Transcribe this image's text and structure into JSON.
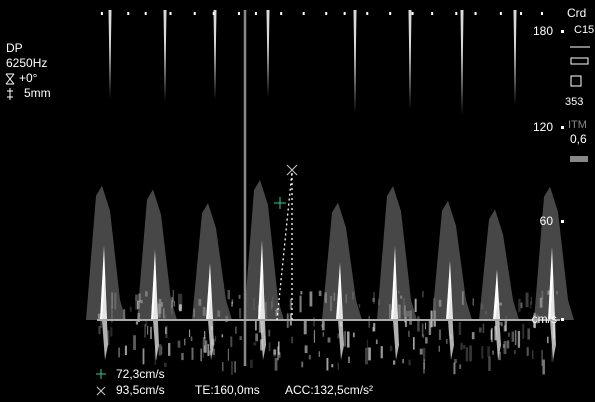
{
  "left_panel": {
    "mode": "DP",
    "prf": "6250Hz",
    "angle": "+0°",
    "gate": "5mm"
  },
  "right_panel": {
    "preset": "Crd",
    "probe": "C15",
    "frame": "353",
    "index_label": "ITM",
    "index_value": "0,6"
  },
  "scale": {
    "ticks": [
      "180",
      "120",
      "60"
    ],
    "unit": "cm/s"
  },
  "measurements": {
    "velocity_1": "72,3cm/s",
    "velocity_2": "93,5cm/s",
    "time": "TE:160,0ms",
    "acceleration": "ACC:132,5cm/s²"
  }
}
